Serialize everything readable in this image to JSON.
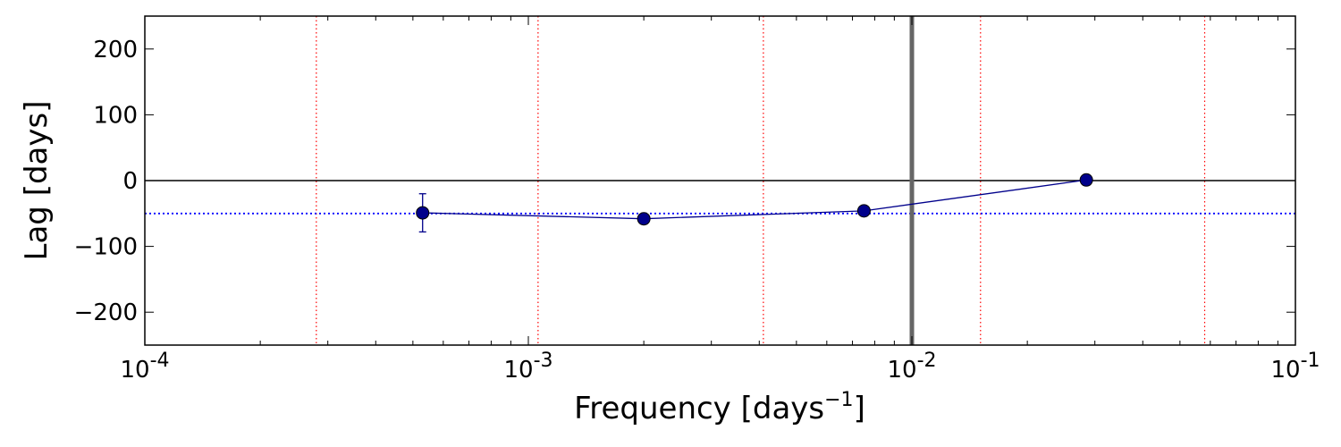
{
  "chart_data": {
    "type": "scatter",
    "title": "",
    "xlabel": {
      "base": "Frequency [days",
      "exponent": "−1",
      "close": "]"
    },
    "ylabel": "Lag [days]",
    "xscale": "log",
    "xlim": [
      0.0001,
      0.1
    ],
    "ylim": [
      -250,
      250
    ],
    "x_tick_labels": [
      {
        "value": 0.0001,
        "base": "10",
        "exp": "-4"
      },
      {
        "value": 0.001,
        "base": "10",
        "exp": "-3"
      },
      {
        "value": 0.01,
        "base": "10",
        "exp": "-2"
      },
      {
        "value": 0.1,
        "base": "10",
        "exp": "-1"
      }
    ],
    "y_ticks": [
      {
        "value": 200,
        "label": "200"
      },
      {
        "value": 100,
        "label": "100"
      },
      {
        "value": 0,
        "label": "0"
      },
      {
        "value": -100,
        "label": "−100"
      },
      {
        "value": -200,
        "label": "−200"
      }
    ],
    "series": [
      {
        "color": "#00008B",
        "points": [
          {
            "x": 0.00053,
            "y": -49,
            "yerr": 29
          },
          {
            "x": 0.002,
            "y": -58,
            "yerr": 0
          },
          {
            "x": 0.0075,
            "y": -46,
            "yerr": 0
          },
          {
            "x": 0.0285,
            "y": 1,
            "yerr": 0
          }
        ]
      }
    ],
    "hlines": [
      {
        "y": 0,
        "color": "#000000",
        "style": "solid"
      },
      {
        "y": -50,
        "color": "#0000ff",
        "style": "dotted"
      }
    ],
    "vlines_dotted": {
      "color": "#ff0000",
      "x": [
        0.00028,
        0.00106,
        0.0041,
        0.0151,
        0.058
      ]
    },
    "vline_thick": {
      "x": 0.01,
      "color": "#666666"
    },
    "grid": false
  }
}
